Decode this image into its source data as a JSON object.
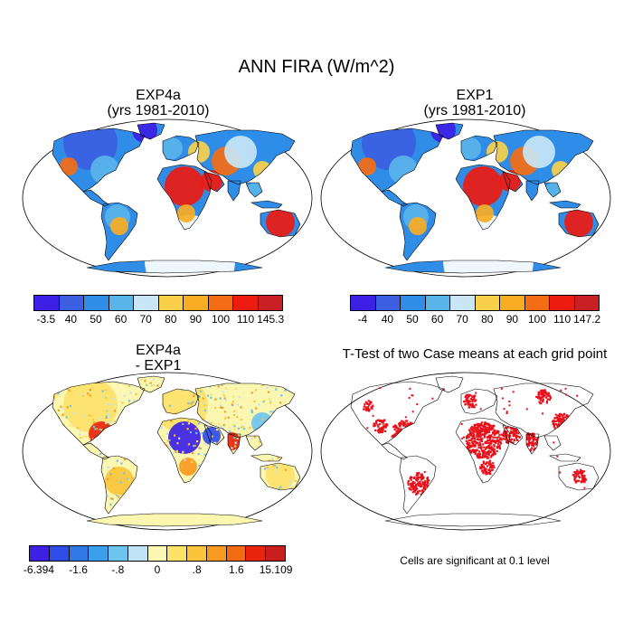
{
  "title": "ANN FIRA (W/m^2)",
  "panels": {
    "p1": {
      "title_line1": "EXP4a",
      "title_line2": "(yrs 1981-2010)"
    },
    "p2": {
      "title_line1": "EXP1",
      "title_line2": "(yrs 1981-2010)"
    },
    "p3": {
      "title_line1": "EXP4a",
      "title_line2": "- EXP1"
    },
    "p4": {
      "title_line1": "T-Test of two Case means at each grid point"
    }
  },
  "colorbar1": {
    "labels": [
      "-3.5",
      "40",
      "50",
      "60",
      "70",
      "80",
      "90",
      "100",
      "110",
      "145.3"
    ],
    "colors": [
      "#3d1fe6",
      "#3b5fe0",
      "#2f8de8",
      "#5ab4ea",
      "#c8e6f5",
      "#fad04a",
      "#f8ad22",
      "#f46c14",
      "#ee1b10",
      "#c92026"
    ]
  },
  "colorbar2": {
    "labels": [
      "-4",
      "40",
      "50",
      "60",
      "70",
      "80",
      "90",
      "100",
      "110",
      "147.2"
    ],
    "colors": [
      "#3d1fe6",
      "#3b5fe0",
      "#2f8de8",
      "#5ab4ea",
      "#c8e6f5",
      "#fad04a",
      "#f8ad22",
      "#f46c14",
      "#ee1b10",
      "#c92026"
    ]
  },
  "colorbar3": {
    "labels": [
      "-6.394",
      "-1.6",
      "-.8",
      "0",
      ".8",
      "1.6",
      "15.109"
    ],
    "colors": [
      "#3d1fe6",
      "#2f4ce8",
      "#2f78e6",
      "#3aa0ea",
      "#6cc4ef",
      "#bfe4f7",
      "#fbf6b0",
      "#fde26a",
      "#fbc43a",
      "#f89a20",
      "#f26a12",
      "#e8260e",
      "#c81e1e"
    ]
  },
  "significance_note": "Cells are significant at 0.1 level",
  "palette": {
    "ocean": "#ffffff",
    "land_outline": "#000000",
    "significant_cells": "#e8101a"
  }
}
